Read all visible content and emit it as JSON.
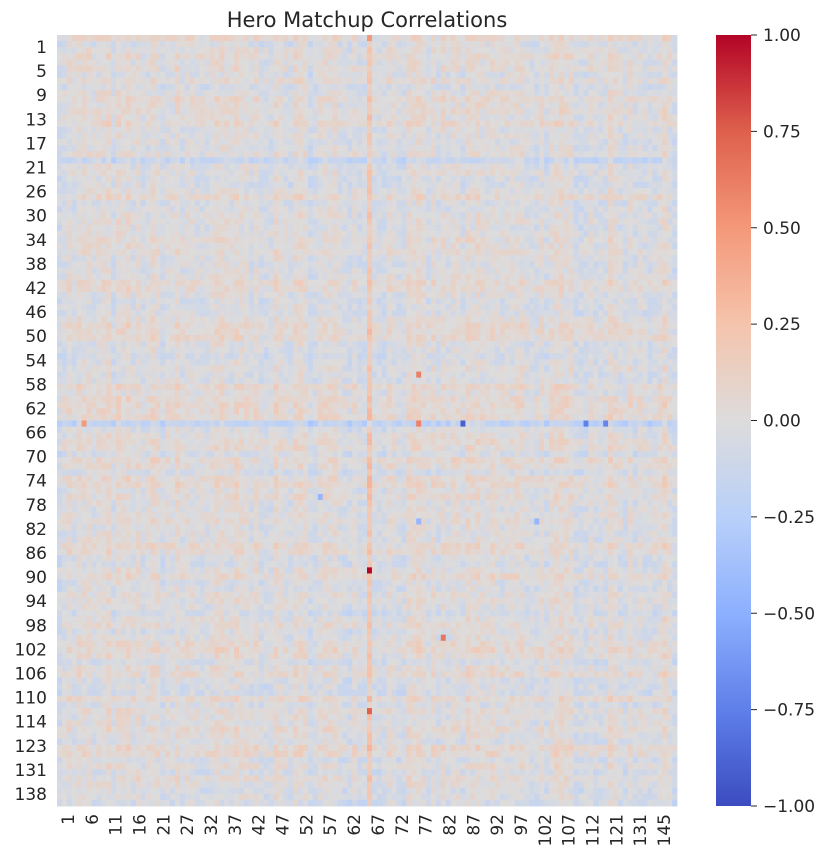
{
  "chart_data": {
    "type": "heatmap",
    "title": "Hero Matchup Correlations",
    "xlabel": "",
    "ylabel": "",
    "y_tick_labels": [
      "1",
      "5",
      "9",
      "13",
      "17",
      "21",
      "26",
      "30",
      "34",
      "38",
      "42",
      "46",
      "50",
      "54",
      "58",
      "62",
      "66",
      "70",
      "74",
      "78",
      "82",
      "86",
      "90",
      "94",
      "98",
      "102",
      "106",
      "110",
      "114",
      "123",
      "131",
      "138"
    ],
    "x_tick_labels": [
      "1",
      "6",
      "11",
      "16",
      "21",
      "27",
      "32",
      "37",
      "42",
      "47",
      "52",
      "57",
      "62",
      "67",
      "72",
      "77",
      "82",
      "87",
      "92",
      "97",
      "102",
      "107",
      "112",
      "121",
      "131",
      "145"
    ],
    "colormap": "coolwarm",
    "vmin": -1.0,
    "vmax": 1.0,
    "colorbar_ticks": [
      "1.00",
      "0.75",
      "0.50",
      "0.25",
      "0.00",
      "−0.25",
      "−0.50",
      "−0.75",
      "−1.00"
    ],
    "grid": false,
    "matrix_size": 126,
    "typical_value_range": [
      -0.15,
      0.15
    ],
    "notable_cells": [
      {
        "row_label": "90",
        "col_label": "67",
        "value": 1.0
      },
      {
        "row_label": "66",
        "col_label": "87",
        "value": -0.9
      },
      {
        "row_label": "66",
        "col_label": "112",
        "value": -0.75
      },
      {
        "row_label": "66",
        "col_label": "121",
        "value": -0.72
      },
      {
        "row_label": "114",
        "col_label": "67",
        "value": 0.8
      },
      {
        "row_label": "114",
        "col_label": "67",
        "value": 0.75
      },
      {
        "row_label": "102",
        "col_label": "82",
        "value": 0.65
      },
      {
        "row_label": "58",
        "col_label": "77",
        "value": 0.6
      },
      {
        "row_label": "66",
        "col_label": "77",
        "value": 0.6
      },
      {
        "row_label": "66",
        "col_label": "6",
        "value": 0.5
      },
      {
        "row_label": "1",
        "col_label": "67",
        "value": 0.5
      },
      {
        "row_label": "78",
        "col_label": "57",
        "value": -0.45
      },
      {
        "row_label": "82",
        "col_label": "102",
        "value": -0.45
      },
      {
        "row_label": "82",
        "col_label": "77",
        "value": -0.45
      }
    ]
  }
}
